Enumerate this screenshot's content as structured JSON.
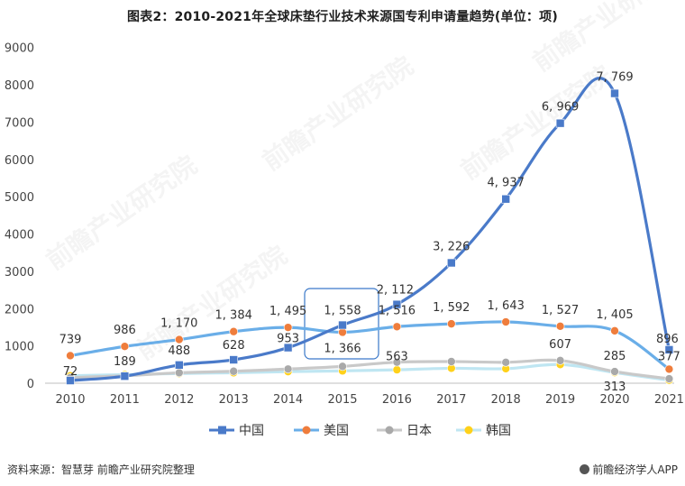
{
  "page": {
    "title": "图表2：2010-2021年全球床垫行业技术来源国专利申请量趋势(单位：项)",
    "source": "资料来源：智慧芽 前瞻产业研究院整理",
    "brand": "前瞻经济学人APP",
    "watermark": "前瞻产业研究院"
  },
  "chart_data": {
    "type": "line",
    "title": "图表2：2010-2021年全球床垫行业技术来源国专利申请量趋势(单位：项)",
    "xlabel": "",
    "ylabel": "",
    "categories": [
      "2010",
      "2011",
      "2012",
      "2013",
      "2014",
      "2015",
      "2016",
      "2017",
      "2018",
      "2019",
      "2020",
      "2021"
    ],
    "ylim": [
      0,
      9000
    ],
    "yticks": [
      0,
      1000,
      2000,
      3000,
      4000,
      5000,
      6000,
      7000,
      8000,
      9000
    ],
    "grid": false,
    "legend": "bottom",
    "series": [
      {
        "name": "中国",
        "color": "#4a7ac9",
        "marker": "square",
        "values": [
          72,
          189,
          488,
          628,
          953,
          1558,
          2112,
          3226,
          4937,
          6969,
          7769,
          896
        ],
        "labels": [
          "72",
          "189",
          "488",
          "628",
          "953",
          "1, 558",
          "2, 112",
          "3, 226",
          "4, 937",
          "6, 969",
          "7, 769",
          "896"
        ]
      },
      {
        "name": "美国",
        "color": "#6aaee8",
        "marker": "circle",
        "values": [
          739,
          986,
          1170,
          1384,
          1495,
          1366,
          1516,
          1592,
          1643,
          1527,
          1405,
          377
        ],
        "labels": [
          "739",
          "986",
          "1, 170",
          "1, 384",
          "1, 495",
          "1, 366",
          "1, 516",
          "1, 592",
          "1, 643",
          "1, 527",
          "1, 405",
          "377"
        ]
      },
      {
        "name": "日本",
        "color": "#c9c9c9",
        "marker": "circle",
        "values": [
          150,
          200,
          280,
          320,
          380,
          450,
          563,
          580,
          560,
          607,
          313,
          120
        ],
        "labels": [
          "",
          "",
          "",
          "",
          "",
          "",
          "563",
          "",
          "",
          "607",
          "313",
          ""
        ]
      },
      {
        "name": "韩国",
        "color": "#bfe6f2",
        "marker": "circle",
        "values": [
          200,
          230,
          260,
          280,
          310,
          330,
          360,
          400,
          390,
          500,
          285,
          80
        ],
        "labels": [
          "",
          "",
          "",
          "",
          "",
          "",
          "",
          "",
          "",
          "",
          "285",
          ""
        ]
      }
    ]
  }
}
